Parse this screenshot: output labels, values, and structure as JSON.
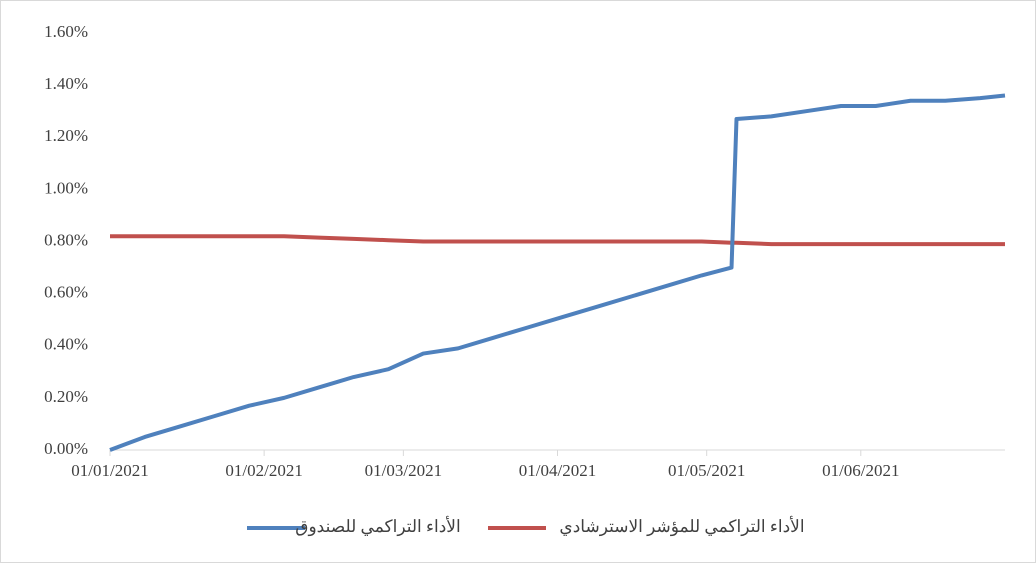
{
  "chart_data": {
    "type": "line",
    "x": [
      "2021-01-01",
      "2021-01-08",
      "2021-01-15",
      "2021-01-22",
      "2021-01-29",
      "2021-02-05",
      "2021-02-12",
      "2021-02-19",
      "2021-02-26",
      "2021-03-05",
      "2021-03-12",
      "2021-03-19",
      "2021-03-26",
      "2021-04-02",
      "2021-04-09",
      "2021-04-16",
      "2021-04-23",
      "2021-04-30",
      "2021-05-06",
      "2021-05-07",
      "2021-05-14",
      "2021-05-21",
      "2021-05-28",
      "2021-06-04",
      "2021-06-11",
      "2021-06-18",
      "2021-06-25",
      "2021-06-30"
    ],
    "series": [
      {
        "name": "الأداء التراكمي للصندوق",
        "color": "#4f81bd",
        "values": [
          0,
          0.05,
          0.09,
          0.13,
          0.17,
          0.2,
          0.24,
          0.28,
          0.31,
          0.37,
          0.39,
          0.43,
          0.47,
          0.51,
          0.55,
          0.59,
          0.63,
          0.67,
          0.7,
          1.27,
          1.28,
          1.3,
          1.32,
          1.32,
          1.34,
          1.34,
          1.35,
          1.36
        ]
      },
      {
        "name": "الأداء التراكمي للمؤشر الاسترشادي",
        "color": "#c0504d",
        "values": [
          0.82,
          0.82,
          0.82,
          0.82,
          0.82,
          0.82,
          0.815,
          0.81,
          0.805,
          0.8,
          0.8,
          0.8,
          0.8,
          0.8,
          0.8,
          0.8,
          0.8,
          0.8,
          0.795,
          0.795,
          0.79,
          0.79,
          0.79,
          0.79,
          0.79,
          0.79,
          0.79,
          0.79
        ]
      }
    ],
    "xlim": [
      "2021-01-01",
      "2021-06-30"
    ],
    "xticks": [
      {
        "value": "2021-01-01",
        "label": "01/01/2021"
      },
      {
        "value": "2021-02-01",
        "label": "01/02/2021"
      },
      {
        "value": "2021-03-01",
        "label": "01/03/2021"
      },
      {
        "value": "2021-04-01",
        "label": "01/04/2021"
      },
      {
        "value": "2021-05-01",
        "label": "01/05/2021"
      },
      {
        "value": "2021-06-01",
        "label": "01/06/2021"
      }
    ],
    "ylim": [
      0,
      1.6
    ],
    "yticks": [
      {
        "value": 0,
        "label": "0.00%"
      },
      {
        "value": 0.2,
        "label": "0.20%"
      },
      {
        "value": 0.4,
        "label": "0.40%"
      },
      {
        "value": 0.6,
        "label": "0.60%"
      },
      {
        "value": 0.8,
        "label": "0.80%"
      },
      {
        "value": 1.0,
        "label": "1.00%"
      },
      {
        "value": 1.2,
        "label": "1.20%"
      },
      {
        "value": 1.4,
        "label": "1.40%"
      },
      {
        "value": 1.6,
        "label": "1.60%"
      }
    ],
    "legend": "bottom"
  }
}
